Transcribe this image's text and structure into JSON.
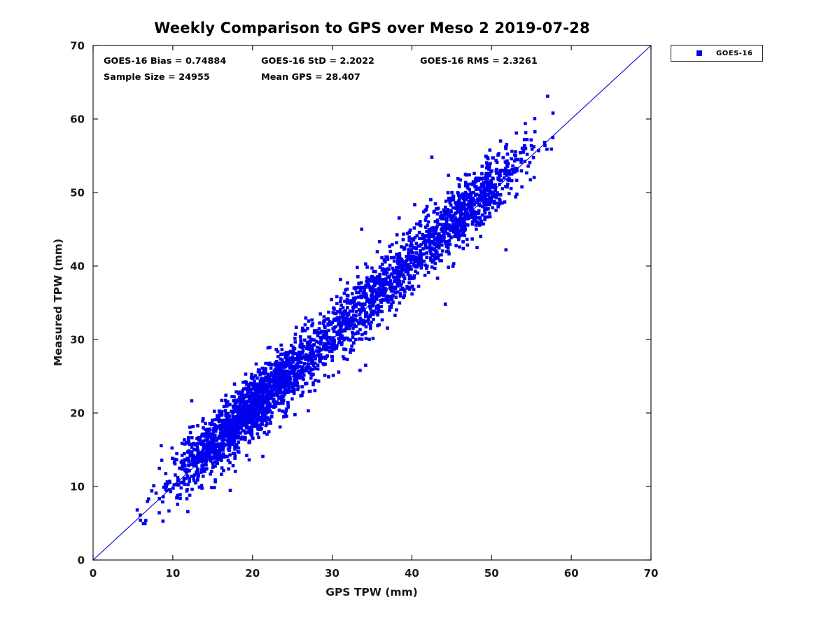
{
  "title": "Weekly Comparison to GPS over Meso 2 2019-07-28",
  "stats_text": {
    "bias": "GOES-16 Bias = 0.74884",
    "std": "GOES-16 StD = 2.2022",
    "rms": "GOES-16 RMS = 2.3261",
    "sample_size": "Sample Size = 24955",
    "mean_gps": "Mean GPS = 28.407"
  },
  "legend": {
    "label": "GOES-16",
    "marker_color": "#0000ee",
    "marker_shape": "square"
  },
  "chart_data": {
    "type": "scatter",
    "title": "Weekly Comparison to GPS over Meso 2 2019-07-28",
    "xlabel": "GPS TPW (mm)",
    "ylabel": "Measured TPW (mm)",
    "xlim": [
      0,
      70
    ],
    "ylim": [
      0,
      70
    ],
    "xticks": [
      0,
      10,
      20,
      30,
      40,
      50,
      60,
      70
    ],
    "yticks": [
      0,
      10,
      20,
      30,
      40,
      50,
      60,
      70
    ],
    "grid": false,
    "legend_position": "outside-top-right",
    "point_color": "#0000ee",
    "line_color": "#0000dd",
    "marker_size_px": 4.6,
    "stats": {
      "bias": 0.74884,
      "std": 2.2022,
      "rms": 2.3261,
      "sample_size": 24955,
      "mean_gps": 28.407
    },
    "identity_line": {
      "from": [
        0,
        0
      ],
      "to": [
        70,
        70
      ]
    },
    "series": [
      {
        "name": "GOES-16",
        "marker": "square",
        "color": "#0000ee",
        "relation": "y = x + bias + noise(std)",
        "x_extent": [
          5.3,
          58.0
        ],
        "y_extent": [
          5.5,
          61.0
        ]
      }
    ],
    "scatter_model": {
      "seed": 77,
      "render_points": 3200,
      "x_mixture": [
        {
          "weight": 0.52,
          "mean": 19.5,
          "sd": 5.2
        },
        {
          "weight": 0.28,
          "mean": 35.5,
          "sd": 5.5
        },
        {
          "weight": 0.2,
          "mean": 47.5,
          "sd": 3.6
        }
      ],
      "x_range": [
        5.3,
        58.0
      ],
      "y_bias": 0.75,
      "y_sd": 2.2
    },
    "outliers": [
      [
        33.7,
        45.0
      ],
      [
        42.5,
        54.8
      ],
      [
        33.5,
        25.8
      ],
      [
        51.8,
        42.2
      ],
      [
        44.2,
        34.8
      ],
      [
        57.7,
        60.8
      ],
      [
        57.5,
        55.9
      ],
      [
        21.3,
        14.1
      ],
      [
        27.0,
        20.3
      ],
      [
        34.2,
        26.5
      ]
    ]
  }
}
